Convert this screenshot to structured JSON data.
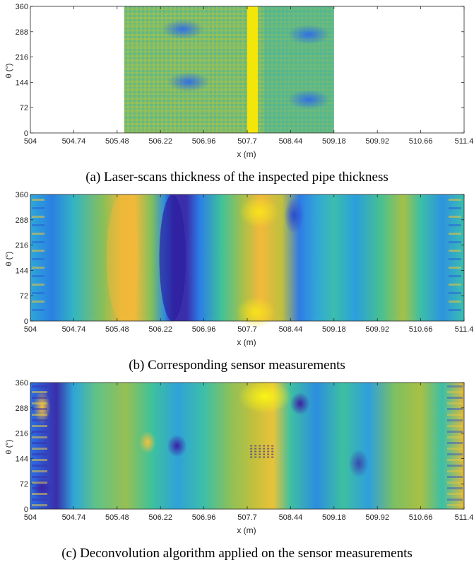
{
  "chart_data": [
    {
      "type": "heatmap",
      "panel": "(a)",
      "caption": "(a)  Laser-scans thickness of the inspected pipe thickness",
      "xlabel": "x (m)",
      "ylabel": "θ (°)",
      "xlim": [
        504,
        511.4
      ],
      "ylim": [
        0,
        360
      ],
      "xticks": [
        "504",
        "504.74",
        "505.48",
        "506.22",
        "506.96",
        "507.7",
        "508.44",
        "509.18",
        "509.92",
        "510.66",
        "511.4"
      ],
      "yticks": [
        "0",
        "72",
        "144",
        "216",
        "288",
        "360"
      ],
      "data_extent_x": [
        505.6,
        509.18
      ],
      "features": [
        {
          "kind": "bright-band",
          "x": [
            507.7,
            507.88
          ],
          "color": "#f5e60a"
        },
        {
          "kind": "dark-spot",
          "x": 506.6,
          "y": 295
        },
        {
          "kind": "dark-spot",
          "x": 506.7,
          "y": 145
        },
        {
          "kind": "dark-spot",
          "x": 508.75,
          "y": 280
        },
        {
          "kind": "dark-spot",
          "x": 508.75,
          "y": 95
        }
      ]
    },
    {
      "type": "heatmap",
      "panel": "(b)",
      "caption": "(b)  Corresponding sensor measurements",
      "xlabel": "x (m)",
      "ylabel": "θ (°)",
      "xlim": [
        504,
        511.4
      ],
      "ylim": [
        0,
        360
      ],
      "xticks": [
        "504",
        "504.74",
        "505.48",
        "506.22",
        "506.96",
        "507.7",
        "508.44",
        "509.18",
        "509.92",
        "510.66",
        "511.4"
      ],
      "yticks": [
        "0",
        "72",
        "144",
        "216",
        "288",
        "360"
      ],
      "features": [
        {
          "kind": "dark-band",
          "x": [
            506.2,
            506.65
          ]
        },
        {
          "kind": "bright-band",
          "x": [
            505.3,
            505.85
          ]
        },
        {
          "kind": "bright-spot",
          "x": 507.9,
          "y": 310
        },
        {
          "kind": "bright-spot",
          "x": 507.85,
          "y": 25
        }
      ]
    },
    {
      "type": "heatmap",
      "panel": "(c)",
      "caption": "(c)  Deconvolution algorithm applied on the sensor measurements",
      "xlabel": "x (m)",
      "ylabel": "θ (°)",
      "xlim": [
        504,
        511.4
      ],
      "ylim": [
        0,
        360
      ],
      "xticks": [
        "504",
        "504.74",
        "505.48",
        "506.22",
        "506.96",
        "507.7",
        "508.44",
        "509.18",
        "509.92",
        "510.66",
        "511.4"
      ],
      "yticks": [
        "0",
        "72",
        "144",
        "216",
        "288",
        "360"
      ],
      "features": [
        {
          "kind": "bright-spot",
          "x": 508.0,
          "y": 320
        },
        {
          "kind": "dark-spot",
          "x": 506.5,
          "y": 180
        },
        {
          "kind": "dark-spot",
          "x": 504.2,
          "y": 60
        },
        {
          "kind": "dark-spot",
          "x": 508.6,
          "y": 300
        }
      ]
    }
  ],
  "colormap": [
    "#3e26a8",
    "#2d69ee",
    "#1aa7d6",
    "#3dc29a",
    "#a8c044",
    "#f8b93a",
    "#f9fb14"
  ]
}
